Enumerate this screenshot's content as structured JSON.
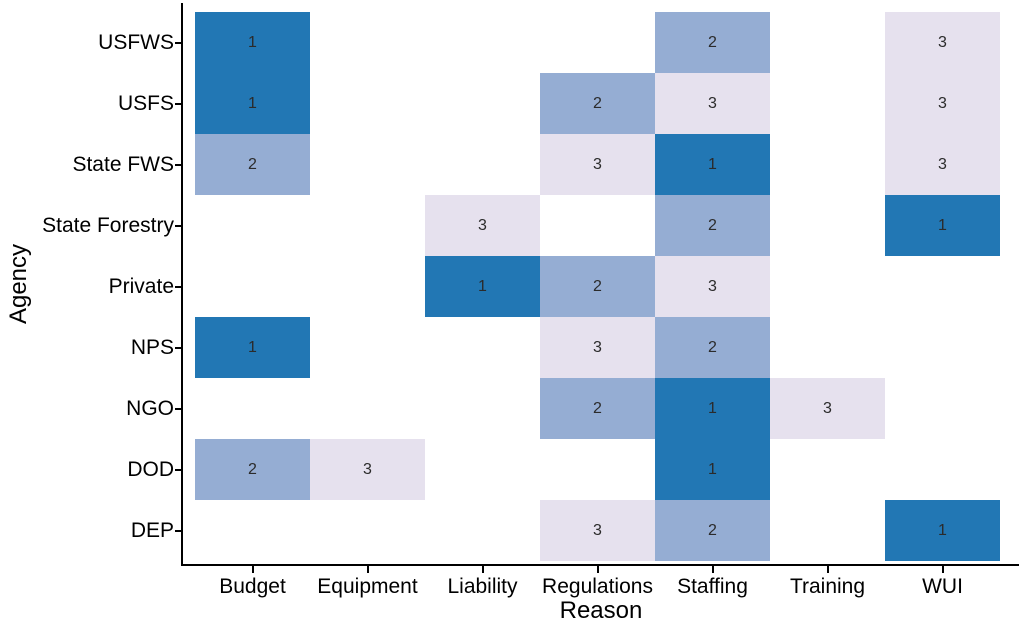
{
  "chart_data": {
    "type": "heatmap",
    "title": "",
    "xlabel": "Reason",
    "ylabel": "Agency",
    "x_categories": [
      "Budget",
      "Equipment",
      "Liability",
      "Regulations",
      "Staffing",
      "Training",
      "WUI"
    ],
    "y_categories": [
      "USFWS",
      "USFS",
      "State FWS",
      "State Forestry",
      "Private",
      "NPS",
      "NGO",
      "DOD",
      "DEP"
    ],
    "cells": [
      {
        "agency": "USFWS",
        "reason": "Budget",
        "rank": 1
      },
      {
        "agency": "USFWS",
        "reason": "Staffing",
        "rank": 2
      },
      {
        "agency": "USFWS",
        "reason": "WUI",
        "rank": 3
      },
      {
        "agency": "USFS",
        "reason": "Budget",
        "rank": 1
      },
      {
        "agency": "USFS",
        "reason": "Regulations",
        "rank": 2
      },
      {
        "agency": "USFS",
        "reason": "Staffing",
        "rank": 3
      },
      {
        "agency": "USFS",
        "reason": "WUI",
        "rank": 3
      },
      {
        "agency": "State FWS",
        "reason": "Budget",
        "rank": 2
      },
      {
        "agency": "State FWS",
        "reason": "Regulations",
        "rank": 3
      },
      {
        "agency": "State FWS",
        "reason": "Staffing",
        "rank": 1
      },
      {
        "agency": "State FWS",
        "reason": "WUI",
        "rank": 3
      },
      {
        "agency": "State Forestry",
        "reason": "Liability",
        "rank": 3
      },
      {
        "agency": "State Forestry",
        "reason": "Staffing",
        "rank": 2
      },
      {
        "agency": "State Forestry",
        "reason": "WUI",
        "rank": 1
      },
      {
        "agency": "Private",
        "reason": "Liability",
        "rank": 1
      },
      {
        "agency": "Private",
        "reason": "Regulations",
        "rank": 2
      },
      {
        "agency": "Private",
        "reason": "Staffing",
        "rank": 3
      },
      {
        "agency": "NPS",
        "reason": "Budget",
        "rank": 1
      },
      {
        "agency": "NPS",
        "reason": "Regulations",
        "rank": 3
      },
      {
        "agency": "NPS",
        "reason": "Staffing",
        "rank": 2
      },
      {
        "agency": "NGO",
        "reason": "Regulations",
        "rank": 2
      },
      {
        "agency": "NGO",
        "reason": "Staffing",
        "rank": 1
      },
      {
        "agency": "NGO",
        "reason": "Training",
        "rank": 3
      },
      {
        "agency": "DOD",
        "reason": "Budget",
        "rank": 2
      },
      {
        "agency": "DOD",
        "reason": "Equipment",
        "rank": 3
      },
      {
        "agency": "DOD",
        "reason": "Staffing",
        "rank": 1
      },
      {
        "agency": "DEP",
        "reason": "Regulations",
        "rank": 3
      },
      {
        "agency": "DEP",
        "reason": "Staffing",
        "rank": 2
      },
      {
        "agency": "DEP",
        "reason": "WUI",
        "rank": 1
      }
    ],
    "rank_colors": {
      "1": "#2277b4",
      "2": "#95add3",
      "3": "#e6e1ee"
    },
    "grid": false,
    "legend": false,
    "background_color": "#ffffff",
    "axis_color": "#000000",
    "cell_text_color": "#2b2b2b"
  }
}
